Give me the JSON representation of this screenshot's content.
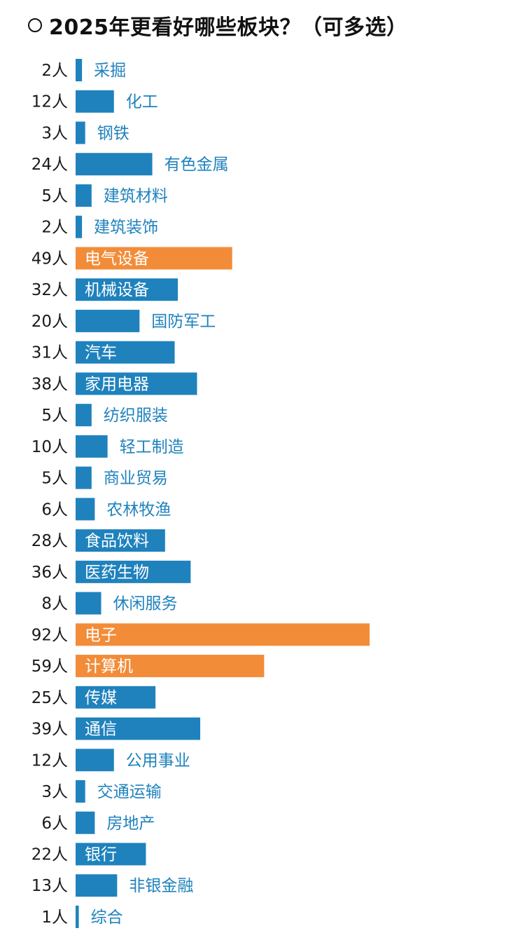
{
  "header": {
    "title": "2025年更看好哪些板块？（可多选）"
  },
  "colors": {
    "default_bar": "#1f82bd",
    "highlight_bar": "#f28c38",
    "text_on_bar": "#ffffff",
    "label_outside": "#1f82bd"
  },
  "chart_data": {
    "type": "bar",
    "orientation": "horizontal",
    "title": "2025年更看好哪些板块？（可多选）",
    "unit": "人",
    "categories": [
      "采掘",
      "化工",
      "钢铁",
      "有色金属",
      "建筑材料",
      "建筑装饰",
      "电气设备",
      "机械设备",
      "国防军工",
      "汽车",
      "家用电器",
      "纺织服装",
      "轻工制造",
      "商业贸易",
      "农林牧渔",
      "食品饮料",
      "医药生物",
      "休闲服务",
      "电子",
      "计算机",
      "传媒",
      "通信",
      "公用事业",
      "交通运输",
      "房地产",
      "银行",
      "非银金融",
      "综合"
    ],
    "values": [
      2,
      12,
      3,
      24,
      5,
      2,
      49,
      32,
      20,
      31,
      38,
      5,
      10,
      5,
      6,
      28,
      36,
      8,
      92,
      59,
      25,
      39,
      12,
      3,
      6,
      22,
      13,
      1
    ],
    "count_labels": [
      "2人",
      "12人",
      "3人",
      "24人",
      "5人",
      "2人",
      "49人",
      "32人",
      "20人",
      "31人",
      "38人",
      "5人",
      "10人",
      "5人",
      "6人",
      "28人",
      "36人",
      "8人",
      "92人",
      "59人",
      "25人",
      "39人",
      "12人",
      "3人",
      "6人",
      "22人",
      "13人",
      "1人"
    ],
    "highlighted": [
      "电气设备",
      "电子",
      "计算机"
    ],
    "xlim": [
      0,
      92
    ],
    "grid": false,
    "legend": "none"
  }
}
